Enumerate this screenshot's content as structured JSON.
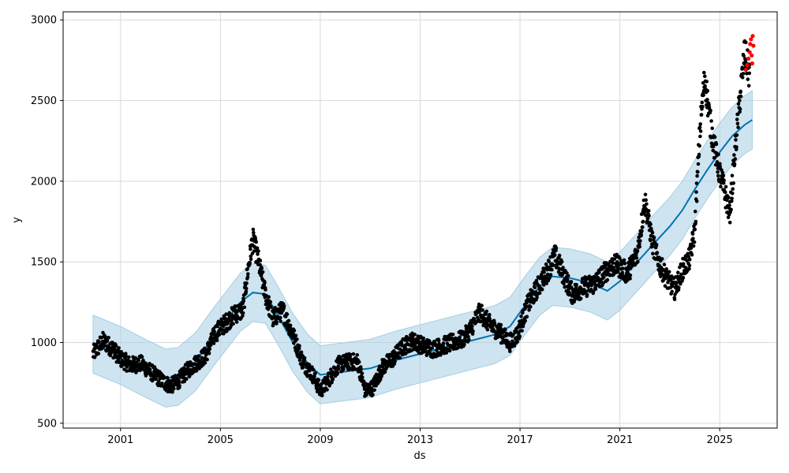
{
  "chart_data": {
    "type": "scatter",
    "title": "",
    "xlabel": "ds",
    "ylabel": "y",
    "grid": true,
    "xlim": [
      1998.7,
      2027.3
    ],
    "ylim": [
      470,
      3050
    ],
    "x_ticks": [
      {
        "value": 2001,
        "label": "2001"
      },
      {
        "value": 2005,
        "label": "2005"
      },
      {
        "value": 2009,
        "label": "2009"
      },
      {
        "value": 2013,
        "label": "2013"
      },
      {
        "value": 2017,
        "label": "2017"
      },
      {
        "value": 2021,
        "label": "2021"
      },
      {
        "value": 2025,
        "label": "2025"
      }
    ],
    "y_ticks": [
      {
        "value": 500,
        "label": "500"
      },
      {
        "value": 1000,
        "label": "1000"
      },
      {
        "value": 1500,
        "label": "1500"
      },
      {
        "value": 2000,
        "label": "2000"
      },
      {
        "value": 2500,
        "label": "2500"
      },
      {
        "value": 3000,
        "label": "3000"
      }
    ],
    "colors": {
      "observed": "#000000",
      "recent": "#ff0000",
      "forecast": "#0072b2",
      "interval": "#a6cee3"
    },
    "uncertainty_halfwidth": 180,
    "forecast_line": [
      [
        1999.9,
        990
      ],
      [
        2001.0,
        920
      ],
      [
        2002.0,
        840
      ],
      [
        2002.8,
        780
      ],
      [
        2003.3,
        790
      ],
      [
        2004.0,
        880
      ],
      [
        2004.7,
        1030
      ],
      [
        2005.3,
        1150
      ],
      [
        2005.8,
        1250
      ],
      [
        2006.3,
        1310
      ],
      [
        2006.8,
        1300
      ],
      [
        2007.3,
        1170
      ],
      [
        2007.9,
        1000
      ],
      [
        2008.5,
        870
      ],
      [
        2009.0,
        800
      ],
      [
        2009.5,
        810
      ],
      [
        2010.0,
        820
      ],
      [
        2010.5,
        830
      ],
      [
        2011.0,
        840
      ],
      [
        2012.0,
        890
      ],
      [
        2013.0,
        930
      ],
      [
        2014.0,
        970
      ],
      [
        2015.0,
        1010
      ],
      [
        2016.0,
        1050
      ],
      [
        2016.6,
        1100
      ],
      [
        2017.2,
        1230
      ],
      [
        2017.8,
        1350
      ],
      [
        2018.3,
        1410
      ],
      [
        2019.0,
        1400
      ],
      [
        2019.8,
        1370
      ],
      [
        2020.5,
        1320
      ],
      [
        2021.0,
        1380
      ],
      [
        2021.7,
        1500
      ],
      [
        2022.4,
        1620
      ],
      [
        2023.0,
        1720
      ],
      [
        2023.5,
        1820
      ],
      [
        2024.0,
        1950
      ],
      [
        2024.5,
        2070
      ],
      [
        2025.0,
        2180
      ],
      [
        2025.5,
        2280
      ],
      [
        2026.0,
        2350
      ],
      [
        2026.3,
        2380
      ]
    ],
    "observed_series": [
      [
        1999.9,
        930
      ],
      [
        2000.3,
        1010
      ],
      [
        2000.7,
        960
      ],
      [
        2001.0,
        900
      ],
      [
        2001.4,
        860
      ],
      [
        2001.8,
        870
      ],
      [
        2002.2,
        820
      ],
      [
        2002.6,
        770
      ],
      [
        2003.0,
        730
      ],
      [
        2003.3,
        760
      ],
      [
        2003.7,
        830
      ],
      [
        2004.0,
        870
      ],
      [
        2004.4,
        920
      ],
      [
        2004.8,
        1060
      ],
      [
        2005.2,
        1120
      ],
      [
        2005.6,
        1180
      ],
      [
        2005.9,
        1200
      ],
      [
        2006.1,
        1450
      ],
      [
        2006.3,
        1640
      ],
      [
        2006.5,
        1520
      ],
      [
        2006.8,
        1300
      ],
      [
        2007.1,
        1150
      ],
      [
        2007.5,
        1200
      ],
      [
        2007.9,
        1050
      ],
      [
        2008.3,
        880
      ],
      [
        2008.7,
        800
      ],
      [
        2009.0,
        700
      ],
      [
        2009.3,
        760
      ],
      [
        2009.7,
        860
      ],
      [
        2010.1,
        880
      ],
      [
        2010.5,
        880
      ],
      [
        2010.8,
        700
      ],
      [
        2011.1,
        720
      ],
      [
        2011.5,
        850
      ],
      [
        2011.9,
        900
      ],
      [
        2012.3,
        970
      ],
      [
        2012.7,
        1010
      ],
      [
        2013.1,
        980
      ],
      [
        2013.5,
        960
      ],
      [
        2013.9,
        980
      ],
      [
        2014.3,
        1000
      ],
      [
        2014.7,
        1020
      ],
      [
        2015.0,
        1080
      ],
      [
        2015.4,
        1190
      ],
      [
        2015.8,
        1110
      ],
      [
        2016.2,
        1060
      ],
      [
        2016.6,
        1000
      ],
      [
        2016.9,
        1050
      ],
      [
        2017.3,
        1230
      ],
      [
        2017.7,
        1340
      ],
      [
        2018.1,
        1440
      ],
      [
        2018.4,
        1540
      ],
      [
        2018.8,
        1400
      ],
      [
        2019.1,
        1300
      ],
      [
        2019.5,
        1340
      ],
      [
        2019.9,
        1360
      ],
      [
        2020.2,
        1400
      ],
      [
        2020.6,
        1470
      ],
      [
        2020.9,
        1480
      ],
      [
        2021.3,
        1430
      ],
      [
        2021.7,
        1550
      ],
      [
        2022.0,
        1880
      ],
      [
        2022.3,
        1620
      ],
      [
        2022.6,
        1480
      ],
      [
        2022.9,
        1390
      ],
      [
        2023.2,
        1330
      ],
      [
        2023.5,
        1450
      ],
      [
        2023.8,
        1520
      ],
      [
        2024.0,
        1700
      ],
      [
        2024.2,
        2300
      ],
      [
        2024.4,
        2650
      ],
      [
        2024.6,
        2380
      ],
      [
        2024.8,
        2200
      ],
      [
        2025.0,
        2050
      ],
      [
        2025.2,
        1930
      ],
      [
        2025.4,
        1800
      ],
      [
        2025.6,
        2150
      ],
      [
        2025.8,
        2500
      ],
      [
        2026.0,
        2800
      ],
      [
        2026.2,
        2650
      ]
    ],
    "recent_points": [
      [
        2026.05,
        2690
      ],
      [
        2026.1,
        2720
      ],
      [
        2026.15,
        2760
      ],
      [
        2026.2,
        2800
      ],
      [
        2026.22,
        2850
      ],
      [
        2026.25,
        2880
      ],
      [
        2026.28,
        2780
      ],
      [
        2026.3,
        2730
      ],
      [
        2026.32,
        2900
      ],
      [
        2026.35,
        2840
      ]
    ]
  }
}
